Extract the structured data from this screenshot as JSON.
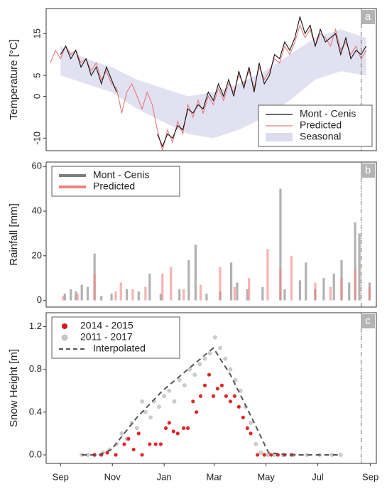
{
  "chart_data": [
    {
      "type": "line",
      "panel_label": "a",
      "y_label": "Temperature [°C]",
      "xlim": [
        -17,
        372
      ],
      "ylim": [
        -13,
        21
      ],
      "yticks": [
        -10,
        0,
        5,
        15
      ],
      "vline_x": 354,
      "legend": "lower right",
      "x": [
        -12,
        -6,
        0,
        6,
        12,
        18,
        24,
        30,
        36,
        42,
        48,
        54,
        60,
        66,
        72,
        78,
        84,
        90,
        96,
        102,
        108,
        114,
        120,
        126,
        132,
        138,
        144,
        150,
        156,
        162,
        168,
        174,
        180,
        186,
        192,
        198,
        204,
        210,
        216,
        222,
        228,
        234,
        240,
        246,
        252,
        258,
        264,
        270,
        276,
        282,
        288,
        294,
        300,
        306,
        312,
        318,
        324,
        330,
        336,
        342,
        348,
        354,
        360
      ],
      "series": [
        {
          "name": "Mont - Cenis",
          "color": "#111111",
          "mark": "line",
          "values": [
            null,
            null,
            10,
            12,
            9,
            11,
            7,
            9,
            5,
            7,
            3,
            7,
            4,
            1,
            null,
            null,
            null,
            null,
            null,
            null,
            null,
            -9,
            -12,
            -9,
            -10,
            -7,
            -8,
            -3,
            -4,
            -2,
            -3,
            1,
            -1,
            3,
            0,
            4,
            0,
            6,
            2,
            7,
            1,
            8,
            3,
            5,
            10,
            9,
            13,
            11,
            14,
            19,
            15,
            17,
            12,
            16,
            13,
            14,
            15,
            10,
            14,
            9,
            11,
            10,
            12
          ]
        },
        {
          "name": "Predicted",
          "color": "#e87a7a",
          "mark": "line",
          "values": [
            8,
            11,
            9,
            12,
            10,
            11,
            8,
            9,
            6,
            8,
            4,
            6,
            3,
            2,
            -4,
            1,
            3,
            0,
            -3,
            1,
            -2,
            -8,
            -13,
            -8,
            -11,
            -6,
            -9,
            -2,
            -5,
            -1,
            -4,
            0,
            -2,
            2,
            -1,
            3,
            1,
            5,
            3,
            6,
            2,
            7,
            4,
            6,
            9,
            8,
            12,
            10,
            13,
            17,
            14,
            16,
            12,
            15,
            14,
            12,
            16,
            11,
            13,
            10,
            12,
            9,
            11
          ]
        },
        {
          "name": "Seasonal",
          "color": "#dcdcef",
          "mark": "band",
          "x": [
            0,
            30,
            60,
            90,
            120,
            150,
            180,
            210,
            240,
            270,
            300,
            330,
            360
          ],
          "lower": [
            5,
            3,
            1,
            -3,
            -6,
            -9,
            -10,
            -8,
            -5,
            -1,
            4,
            6,
            5
          ],
          "upper": [
            12,
            9,
            7,
            4,
            2,
            0,
            1,
            3,
            6,
            10,
            14,
            16,
            14
          ]
        }
      ]
    },
    {
      "type": "bar",
      "panel_label": "b",
      "y_label": "Rainfall [mm]",
      "xlim": [
        -17,
        372
      ],
      "ylim": [
        -3,
        62
      ],
      "yticks": [
        0,
        20,
        40,
        60
      ],
      "vline_x": 354,
      "legend": "upper left",
      "series": [
        {
          "name": "Mont - Cenis",
          "color": "#7f7f7f",
          "mark": "bar",
          "x": [
            5,
            12,
            18,
            25,
            32,
            40,
            48,
            60,
            78,
            92,
            105,
            118,
            140,
            151,
            159,
            172,
            188,
            201,
            208,
            220,
            238,
            259,
            264,
            282,
            289,
            300,
            310,
            322,
            331,
            340,
            347,
            352,
            364
          ],
          "values": [
            3,
            5,
            4,
            7,
            6,
            21,
            2,
            3,
            5,
            4,
            12,
            3,
            5,
            18,
            25,
            3,
            4,
            17,
            8,
            5,
            6,
            50,
            5,
            9,
            17,
            5,
            10,
            12,
            18,
            8,
            35,
            30,
            8
          ]
        },
        {
          "name": "Predicted",
          "color": "#f08080",
          "mark": "bar",
          "x": [
            3,
            20,
            40,
            65,
            71,
            85,
            100,
            120,
            130,
            145,
            165,
            188,
            205,
            222,
            244,
            259,
            272,
            300,
            318,
            331,
            347,
            364
          ],
          "values": [
            2,
            3,
            12,
            4,
            8,
            5,
            6,
            12,
            15,
            5,
            7,
            15,
            6,
            10,
            23,
            14,
            20,
            8,
            6,
            10,
            14,
            6
          ]
        }
      ]
    },
    {
      "type": "scatter",
      "panel_label": "c",
      "y_label": "Snow Height [m]",
      "xlim": [
        -17,
        372
      ],
      "ylim": [
        -0.08,
        1.33
      ],
      "vline_x": 354,
      "legend": "upper left",
      "yticks": [
        {
          "value": 0,
          "label": "0.0"
        },
        0.4,
        0.8,
        1.2
      ],
      "xticks": [
        {
          "value": 0,
          "label": "Sep"
        },
        {
          "value": 61,
          "label": "Nov"
        },
        {
          "value": 122,
          "label": "Jan"
        },
        {
          "value": 181,
          "label": "Mar"
        },
        {
          "value": 242,
          "label": "May"
        },
        {
          "value": 303,
          "label": "Jul"
        },
        {
          "value": 365,
          "label": "Sep"
        }
      ],
      "series": [
        {
          "name": "2014 - 2015",
          "color": "#dd1111",
          "mark": "points",
          "x": [
            40,
            48,
            55,
            65,
            75,
            80,
            86,
            92,
            96,
            105,
            112,
            118,
            124,
            128,
            133,
            138,
            145,
            150,
            156,
            160,
            165,
            170,
            175,
            180,
            185,
            190,
            195,
            200,
            205,
            210,
            215,
            220,
            224,
            232,
            240,
            248,
            256,
            264,
            272
          ],
          "values": [
            0,
            0,
            0.02,
            0,
            0.1,
            0.15,
            0.05,
            0.2,
            0,
            0.1,
            0.1,
            0.1,
            0.25,
            0.3,
            0.22,
            0.2,
            0.25,
            0.25,
            0.5,
            0.4,
            0.55,
            0.65,
            0.75,
            0.55,
            0.62,
            0.65,
            0.55,
            0.5,
            0.55,
            0.45,
            0.35,
            0.25,
            0.2,
            0,
            0,
            0,
            0,
            0,
            0
          ]
        },
        {
          "name": "2011 - 2017",
          "color": "#c8c8c8",
          "mark": "points",
          "x": [
            25,
            32,
            40,
            50,
            58,
            66,
            72,
            78,
            84,
            90,
            96,
            100,
            106,
            110,
            116,
            122,
            128,
            134,
            140,
            146,
            152,
            158,
            164,
            170,
            176,
            182,
            188,
            194,
            200,
            206,
            212,
            218,
            224,
            230,
            236,
            244,
            252,
            262,
            275,
            290,
            305,
            320,
            330
          ],
          "values": [
            0,
            0,
            0,
            0.02,
            0.05,
            0.1,
            0.2,
            0.15,
            0.3,
            0.25,
            0.5,
            0.4,
            0.35,
            0.5,
            0.45,
            0.55,
            0.6,
            0.5,
            0.7,
            0.65,
            0.8,
            0.75,
            0.85,
            0.9,
            0.95,
            1.1,
            1.0,
            0.9,
            0.8,
            0.7,
            0.6,
            0.45,
            0.3,
            0.1,
            0.02,
            0,
            0,
            0,
            0,
            0,
            0,
            0,
            0
          ]
        },
        {
          "name": "Interpolated",
          "color": "#555555",
          "mark": "dashed",
          "x": [
            25,
            45,
            60,
            90,
            120,
            150,
            180,
            200,
            225,
            245,
            270,
            300,
            330
          ],
          "values": [
            0,
            0,
            0.05,
            0.35,
            0.6,
            0.8,
            1.0,
            0.75,
            0.35,
            0.02,
            0,
            0,
            0
          ]
        }
      ]
    }
  ]
}
